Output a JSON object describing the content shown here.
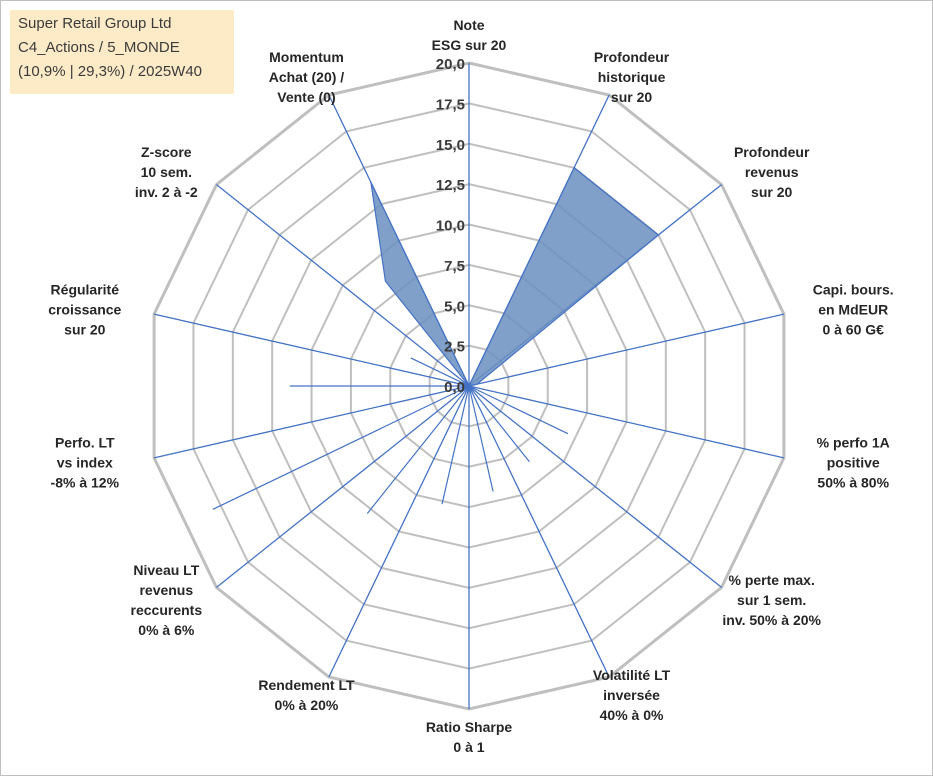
{
  "info_box": {
    "company": "Super Retail Group Ltd",
    "category": "C4_Actions / 5_MONDE",
    "stats": "(10,9% | 29,3%) / 2025W40"
  },
  "colors": {
    "grid": "#bfbfbf",
    "spoke": "#4472c4",
    "fill": "#6a8fc0",
    "info_bg": "#fdebc8"
  },
  "chart_data": {
    "type": "radar",
    "title": "",
    "r_range": [
      0,
      20
    ],
    "r_ticks": [
      "0,0",
      "2,5",
      "5,0",
      "7,5",
      "10,0",
      "12,5",
      "15,0",
      "17,5",
      "20,0"
    ],
    "r_tick_values": [
      0,
      2.5,
      5,
      7.5,
      10,
      12.5,
      15,
      17.5,
      20
    ],
    "axes": [
      {
        "lines": [
          "Note",
          "ESG sur 20"
        ],
        "value": 0
      },
      {
        "lines": [
          "Profondeur",
          "historique",
          "sur 20"
        ],
        "value": 15
      },
      {
        "lines": [
          "Profondeur",
          "revenus",
          "sur 20"
        ],
        "value": 15
      },
      {
        "lines": [
          "Capi. bours.",
          "en MdEUR",
          "0 à 60 G€"
        ],
        "value": 0.5
      },
      {
        "lines": [
          "% perfo 1A",
          "positive",
          "50% à 80%"
        ],
        "value": 0
      },
      {
        "lines": [
          "% perte max.",
          "sur 1 sem.",
          "inv. 50% à 20%"
        ],
        "value": 0
      },
      {
        "lines": [
          "Volatilité LT",
          "inversée",
          "40% à 0%"
        ],
        "value": 0
      },
      {
        "lines": [
          "Ratio Sharpe",
          "0 à 1"
        ],
        "value": 0
      },
      {
        "lines": [
          "Rendement LT",
          "0% à 20%"
        ],
        "value": 0
      },
      {
        "lines": [
          "Niveau LT",
          "revenus",
          "reccurents",
          "0% à 6%"
        ],
        "value": 0
      },
      {
        "lines": [
          "Perfo. LT",
          "vs index",
          "-8% à 12%"
        ],
        "value": 0
      },
      {
        "lines": [
          "Régularité",
          "croissance",
          "sur 20"
        ],
        "value": 0
      },
      {
        "lines": [
          "Z-score",
          "10 sem.",
          "inv. 2 à -2"
        ],
        "value": 0
      },
      {
        "lines": [
          "Momentum",
          "Achat (20) /",
          "Vente (0)"
        ],
        "value": 14
      }
    ],
    "inner_points": [
      {
        "between_axes": [
          4,
          5
        ],
        "value": 6.8
      },
      {
        "between_axes": [
          5,
          6
        ],
        "value": 6.0
      },
      {
        "between_axes": [
          6,
          7
        ],
        "value": 6.7
      },
      {
        "between_axes": [
          7,
          8
        ],
        "value": 7.5
      },
      {
        "between_axes": [
          8,
          9
        ],
        "value": 10.1
      },
      {
        "between_axes": [
          9,
          10
        ],
        "value": 17.6
      },
      {
        "between_axes": [
          10,
          11
        ],
        "value": 11.1
      },
      {
        "between_axes": [
          11,
          12
        ],
        "value": 4.0
      },
      {
        "between_axes": [
          12,
          13
        ],
        "value": 8.3
      }
    ],
    "grid": true
  }
}
